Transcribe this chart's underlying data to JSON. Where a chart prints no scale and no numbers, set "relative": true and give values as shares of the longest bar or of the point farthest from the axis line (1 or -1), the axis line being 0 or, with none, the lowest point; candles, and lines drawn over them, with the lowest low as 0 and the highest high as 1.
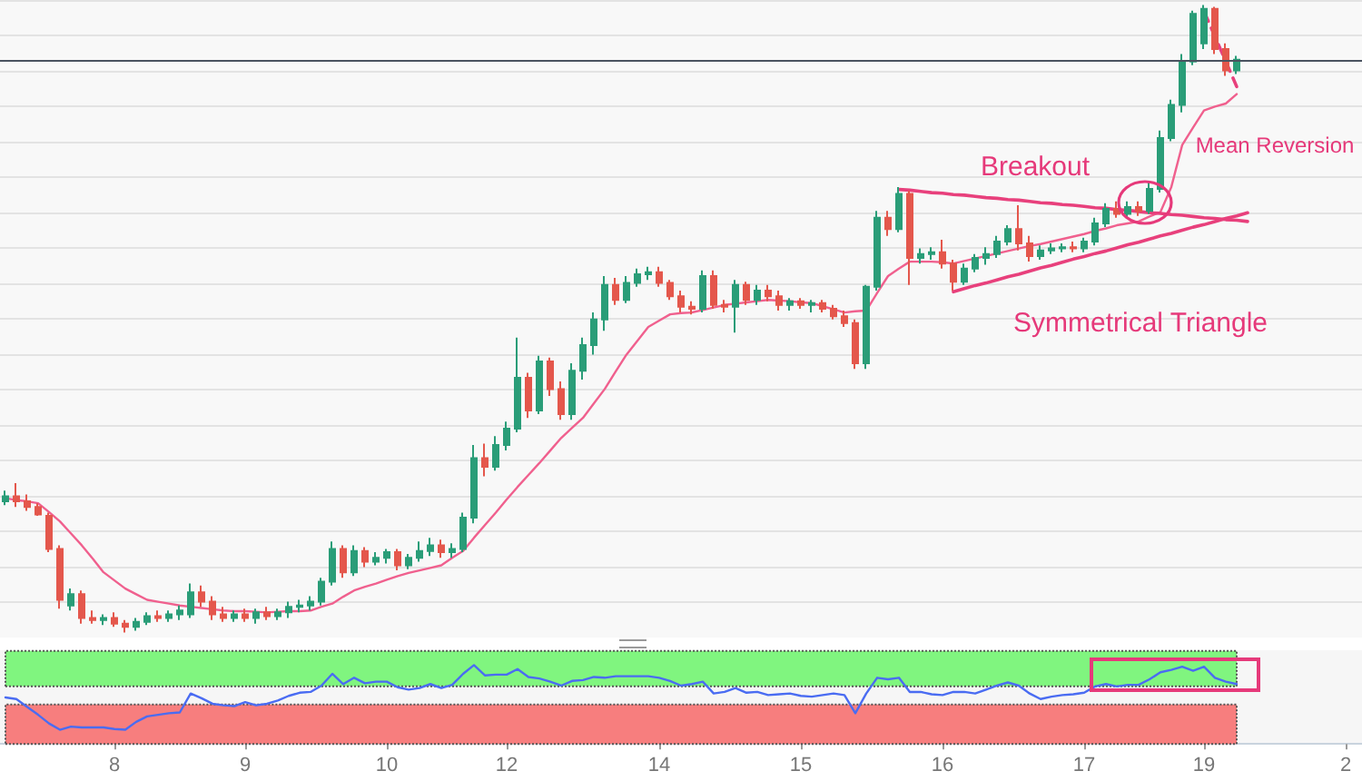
{
  "chart_data": [
    {
      "type": "candlestick",
      "relative": true,
      "tick_labels": false,
      "grid": "y",
      "categories": [
        null,
        null,
        null,
        null,
        null,
        null,
        null,
        null,
        null,
        null,
        "8",
        null,
        null,
        null,
        null,
        null,
        null,
        null,
        null,
        null,
        null,
        null,
        "9",
        null,
        null,
        null,
        null,
        null,
        null,
        null,
        null,
        null,
        null,
        null,
        null,
        "10",
        null,
        null,
        null,
        null,
        null,
        null,
        null,
        null,
        null,
        null,
        "12",
        null,
        null,
        null,
        null,
        null,
        null,
        null,
        null,
        null,
        null,
        null,
        null,
        null,
        "14",
        null,
        null,
        null,
        null,
        null,
        null,
        null,
        null,
        null,
        null,
        null,
        null,
        "15",
        null,
        null,
        null,
        null,
        null,
        null,
        null,
        null,
        null,
        null,
        null,
        null,
        "16",
        null,
        null,
        null,
        null,
        null,
        null,
        null,
        null,
        null,
        null,
        null,
        null,
        "17",
        null,
        null,
        null,
        null,
        null,
        null,
        null,
        null,
        null,
        null,
        "19",
        null,
        null,
        null,
        null,
        null,
        null,
        null,
        null,
        null,
        null,
        null,
        null,
        "2",
        null
      ],
      "ohlc": [
        [
          0.209,
          0.226,
          0.203,
          0.217
        ],
        [
          0.217,
          0.238,
          0.2,
          0.209
        ],
        [
          0.209,
          0.22,
          0.194,
          0.2
        ],
        [
          0.2,
          0.206,
          0.186,
          0.188
        ],
        [
          0.186,
          0.191,
          0.128,
          0.133
        ],
        [
          0.133,
          0.139,
          0.038,
          0.052
        ],
        [
          0.043,
          0.07,
          0.035,
          0.061
        ],
        [
          0.061,
          0.067,
          0.014,
          0.023
        ],
        [
          0.023,
          0.035,
          0.014,
          0.02
        ],
        [
          0.02,
          0.029,
          0.012,
          0.023
        ],
        [
          0.023,
          0.032,
          0.009,
          0.014
        ],
        [
          0.014,
          0.02,
          0,
          0.009
        ],
        [
          0.009,
          0.023,
          0.003,
          0.017
        ],
        [
          0.017,
          0.032,
          0.012,
          0.026
        ],
        [
          0.026,
          0.035,
          0.017,
          0.023
        ],
        [
          0.023,
          0.035,
          0.017,
          0.029
        ],
        [
          0.029,
          0.043,
          0.02,
          0.035
        ],
        [
          0.029,
          0.078,
          0.023,
          0.064
        ],
        [
          0.064,
          0.075,
          0.041,
          0.049
        ],
        [
          0.049,
          0.058,
          0.02,
          0.029
        ],
        [
          0.029,
          0.041,
          0.017,
          0.023
        ],
        [
          0.023,
          0.035,
          0.017,
          0.029
        ],
        [
          0.029,
          0.038,
          0.017,
          0.023
        ],
        [
          0.023,
          0.038,
          0.014,
          0.032
        ],
        [
          0.032,
          0.041,
          0.02,
          0.026
        ],
        [
          0.026,
          0.038,
          0.02,
          0.032
        ],
        [
          0.032,
          0.049,
          0.023,
          0.041
        ],
        [
          0.041,
          0.052,
          0.032,
          0.043
        ],
        [
          0.043,
          0.058,
          0.035,
          0.049
        ],
        [
          0.049,
          0.087,
          0.043,
          0.081
        ],
        [
          0.081,
          0.145,
          0.075,
          0.133
        ],
        [
          0.133,
          0.139,
          0.087,
          0.096
        ],
        [
          0.096,
          0.139,
          0.09,
          0.13
        ],
        [
          0.13,
          0.136,
          0.104,
          0.113
        ],
        [
          0.113,
          0.128,
          0.107,
          0.119
        ],
        [
          0.119,
          0.133,
          0.11,
          0.128
        ],
        [
          0.128,
          0.133,
          0.099,
          0.107
        ],
        [
          0.107,
          0.125,
          0.101,
          0.119
        ],
        [
          0.119,
          0.145,
          0.113,
          0.13
        ],
        [
          0.13,
          0.151,
          0.122,
          0.139
        ],
        [
          0.139,
          0.148,
          0.119,
          0.128
        ],
        [
          0.128,
          0.142,
          0.119,
          0.133
        ],
        [
          0.133,
          0.191,
          0.128,
          0.183
        ],
        [
          0.183,
          0.299,
          0.174,
          0.278
        ],
        [
          0.278,
          0.301,
          0.249,
          0.264
        ],
        [
          0.264,
          0.313,
          0.258,
          0.299
        ],
        [
          0.299,
          0.336,
          0.29,
          0.325
        ],
        [
          0.325,
          0.47,
          0.319,
          0.406
        ],
        [
          0.406,
          0.414,
          0.342,
          0.354
        ],
        [
          0.354,
          0.441,
          0.348,
          0.432
        ],
        [
          0.432,
          0.438,
          0.377,
          0.388
        ],
        [
          0.388,
          0.4,
          0.339,
          0.348
        ],
        [
          0.348,
          0.429,
          0.339,
          0.417
        ],
        [
          0.417,
          0.47,
          0.403,
          0.458
        ],
        [
          0.458,
          0.51,
          0.443,
          0.499
        ],
        [
          0.499,
          0.568,
          0.481,
          0.554
        ],
        [
          0.554,
          0.565,
          0.522,
          0.53
        ],
        [
          0.53,
          0.568,
          0.525,
          0.557
        ],
        [
          0.557,
          0.58,
          0.551,
          0.571
        ],
        [
          0.571,
          0.583,
          0.562,
          0.574
        ],
        [
          0.574,
          0.583,
          0.551,
          0.557
        ],
        [
          0.557,
          0.562,
          0.53,
          0.536
        ],
        [
          0.536,
          0.545,
          0.51,
          0.519
        ],
        [
          0.519,
          0.528,
          0.507,
          0.516
        ],
        [
          0.516,
          0.577,
          0.51,
          0.568
        ],
        [
          0.568,
          0.577,
          0.516,
          0.522
        ],
        [
          0.522,
          0.53,
          0.51,
          0.519
        ],
        [
          0.519,
          0.562,
          0.478,
          0.554
        ],
        [
          0.554,
          0.559,
          0.522,
          0.53
        ],
        [
          0.53,
          0.554,
          0.522,
          0.545
        ],
        [
          0.545,
          0.554,
          0.528,
          0.536
        ],
        [
          0.536,
          0.545,
          0.513,
          0.522
        ],
        [
          0.522,
          0.533,
          0.513,
          0.528
        ],
        [
          0.528,
          0.533,
          0.516,
          0.522
        ],
        [
          0.522,
          0.53,
          0.51,
          0.525
        ],
        [
          0.525,
          0.53,
          0.51,
          0.516
        ],
        [
          0.516,
          0.522,
          0.499,
          0.504
        ],
        [
          0.504,
          0.513,
          0.487,
          0.493
        ],
        [
          0.493,
          0.499,
          0.42,
          0.429
        ],
        [
          0.429,
          0.554,
          0.42,
          0.551
        ],
        [
          0.551,
          0.672,
          0.545,
          0.661
        ],
        [
          0.661,
          0.672,
          0.632,
          0.643
        ],
        [
          0.643,
          0.71,
          0.638,
          0.699
        ],
        [
          0.699,
          0.704,
          0.554,
          0.597
        ],
        [
          0.597,
          0.612,
          0.588,
          0.603
        ],
        [
          0.603,
          0.614,
          0.594,
          0.606
        ],
        [
          0.606,
          0.626,
          0.58,
          0.588
        ],
        [
          0.588,
          0.594,
          0.545,
          0.559
        ],
        [
          0.559,
          0.588,
          0.554,
          0.58
        ],
        [
          0.58,
          0.603,
          0.574,
          0.597
        ],
        [
          0.597,
          0.614,
          0.586,
          0.603
        ],
        [
          0.603,
          0.632,
          0.597,
          0.623
        ],
        [
          0.623,
          0.649,
          0.617,
          0.643
        ],
        [
          0.643,
          0.681,
          0.609,
          0.62
        ],
        [
          0.62,
          0.632,
          0.591,
          0.6
        ],
        [
          0.6,
          0.617,
          0.594,
          0.609
        ],
        [
          0.609,
          0.62,
          0.603,
          0.612
        ],
        [
          0.612,
          0.62,
          0.606,
          0.614
        ],
        [
          0.614,
          0.623,
          0.606,
          0.612
        ],
        [
          0.612,
          0.629,
          0.606,
          0.623
        ],
        [
          0.623,
          0.661,
          0.617,
          0.652
        ],
        [
          0.652,
          0.684,
          0.646,
          0.675
        ],
        [
          0.675,
          0.687,
          0.661,
          0.667
        ],
        [
          0.667,
          0.687,
          0.661,
          0.678
        ],
        [
          0.678,
          0.687,
          0.664,
          0.672
        ],
        [
          0.672,
          0.719,
          0.667,
          0.707
        ],
        [
          0.707,
          0.8,
          0.701,
          0.788
        ],
        [
          0.788,
          0.849,
          0.783,
          0.841
        ],
        [
          0.841,
          0.922,
          0.829,
          0.91
        ],
        [
          0.91,
          0.991,
          0.904,
          0.986
        ],
        [
          0.939,
          1,
          0.93,
          0.994
        ],
        [
          0.994,
          0.997,
          0.922,
          0.93
        ],
        [
          0.93,
          0.939,
          0.887,
          0.896
        ],
        [
          0.896,
          0.919,
          0.89,
          0.913
        ],
        null,
        null,
        null,
        null,
        null,
        null,
        null,
        null,
        null,
        null,
        null
      ],
      "series": [
        {
          "type": "line",
          "color": "#f0608e",
          "values": [
            0.214,
            0.211,
            0.209,
            0.206,
            0.192,
            0.177,
            0.158,
            0.139,
            0.118,
            0.096,
            0.083,
            0.07,
            0.061,
            0.052,
            0.049,
            0.046,
            0.043,
            0.041,
            0.039,
            0.037,
            0.035,
            0.034,
            0.034,
            0.033,
            0.032,
            0.033,
            0.034,
            0.034,
            0.035,
            0.041,
            0.046,
            0.057,
            0.067,
            0.073,
            0.078,
            0.084,
            0.09,
            0.095,
            0.099,
            0.103,
            0.107,
            0.119,
            0.13,
            0.151,
            0.171,
            0.191,
            0.212,
            0.232,
            0.251,
            0.27,
            0.29,
            0.31,
            0.326,
            0.342,
            0.365,
            0.388,
            0.416,
            0.443,
            0.465,
            0.487,
            0.497,
            0.507,
            0.509,
            0.51,
            0.514,
            0.518,
            0.522,
            0.524,
            0.526,
            0.528,
            0.53,
            0.529,
            0.528,
            0.526,
            0.525,
            0.52,
            0.515,
            0.51,
            0.512,
            0.513,
            0.541,
            0.568,
            0.58,
            0.591,
            0.591,
            0.591,
            0.59,
            0.588,
            0.592,
            0.596,
            0.6,
            0.604,
            0.608,
            0.612,
            0.616,
            0.619,
            0.623,
            0.627,
            0.631,
            0.635,
            0.64,
            0.644,
            0.649,
            0.652,
            0.655,
            0.663,
            0.67,
            0.71,
            0.777,
            0.805,
            0.832,
            0.838,
            0.843,
            0.858,
            null,
            null,
            null,
            null,
            null,
            null,
            null,
            null,
            null,
            null,
            null
          ]
        },
        {
          "type": "line",
          "color": "#e8407c",
          "values": [
            null,
            null,
            null,
            null,
            null,
            null,
            null,
            null,
            null,
            null,
            null,
            null,
            null,
            null,
            null,
            null,
            null,
            null,
            null,
            null,
            null,
            null,
            null,
            null,
            null,
            null,
            null,
            null,
            null,
            null,
            null,
            null,
            null,
            null,
            null,
            null,
            null,
            null,
            null,
            null,
            null,
            null,
            null,
            null,
            null,
            null,
            null,
            null,
            null,
            null,
            null,
            null,
            null,
            null,
            null,
            null,
            null,
            null,
            null,
            null,
            null,
            null,
            null,
            null,
            null,
            null,
            null,
            null,
            null,
            null,
            null,
            null,
            null,
            null,
            null,
            null,
            null,
            null,
            null,
            null,
            null,
            null,
            0.706,
            0.705,
            0.703,
            0.701,
            0.7,
            0.698,
            0.697,
            0.695,
            0.693,
            0.692,
            0.69,
            0.689,
            0.687,
            0.685,
            0.684,
            0.682,
            0.681,
            0.679,
            0.677,
            0.676,
            0.674,
            0.673,
            0.671,
            0.669,
            0.668,
            0.666,
            0.665,
            0.663,
            0.661,
            0.66,
            0.658,
            0.657,
            0.655,
            null,
            null,
            null,
            null,
            null,
            null,
            null,
            null,
            null,
            null
          ]
        },
        {
          "type": "line",
          "color": "#e8407c",
          "values": [
            null,
            null,
            null,
            null,
            null,
            null,
            null,
            null,
            null,
            null,
            null,
            null,
            null,
            null,
            null,
            null,
            null,
            null,
            null,
            null,
            null,
            null,
            null,
            null,
            null,
            null,
            null,
            null,
            null,
            null,
            null,
            null,
            null,
            null,
            null,
            null,
            null,
            null,
            null,
            null,
            null,
            null,
            null,
            null,
            null,
            null,
            null,
            null,
            null,
            null,
            null,
            null,
            null,
            null,
            null,
            null,
            null,
            null,
            null,
            null,
            null,
            null,
            null,
            null,
            null,
            null,
            null,
            null,
            null,
            null,
            null,
            null,
            null,
            null,
            null,
            null,
            null,
            null,
            null,
            null,
            null,
            null,
            null,
            null,
            null,
            null,
            null,
            0.543,
            0.548,
            0.553,
            0.557,
            0.562,
            0.567,
            0.571,
            0.576,
            0.581,
            0.585,
            0.59,
            0.595,
            0.599,
            0.604,
            0.608,
            0.613,
            0.618,
            0.622,
            0.627,
            0.632,
            0.636,
            0.641,
            0.646,
            0.65,
            0.655,
            0.66,
            0.664,
            0.669,
            null,
            null,
            null,
            null,
            null,
            null,
            null,
            null,
            null,
            null
          ]
        },
        {
          "type": "line",
          "color": "#e8407c",
          "line_style": "dashed",
          "values": [
            null,
            null,
            null,
            null,
            null,
            null,
            null,
            null,
            null,
            null,
            null,
            null,
            null,
            null,
            null,
            null,
            null,
            null,
            null,
            null,
            null,
            null,
            null,
            null,
            null,
            null,
            null,
            null,
            null,
            null,
            null,
            null,
            null,
            null,
            null,
            null,
            null,
            null,
            null,
            null,
            null,
            null,
            null,
            null,
            null,
            null,
            null,
            null,
            null,
            null,
            null,
            null,
            null,
            null,
            null,
            null,
            null,
            null,
            null,
            null,
            null,
            null,
            null,
            null,
            null,
            null,
            null,
            null,
            null,
            null,
            null,
            null,
            null,
            null,
            null,
            null,
            null,
            null,
            null,
            null,
            null,
            null,
            null,
            null,
            null,
            null,
            null,
            null,
            null,
            null,
            null,
            null,
            null,
            null,
            null,
            null,
            null,
            null,
            null,
            null,
            null,
            null,
            null,
            null,
            null,
            null,
            null,
            null,
            null,
            null,
            0.99,
            0.95,
            0.91,
            0.87,
            null,
            null,
            null,
            null,
            null,
            null,
            null,
            null,
            null,
            null,
            null
          ]
        }
      ],
      "ref_lines": [
        {
          "axis": "y",
          "value": 0.913,
          "color": "#4a5360"
        }
      ],
      "annotations": [
        "Breakout",
        "Symmetrical Triangle",
        "Mean Reversion"
      ]
    },
    {
      "type": "line",
      "relative": true,
      "tick_labels": "x",
      "color": "#4a6cf2",
      "categories": [
        null,
        null,
        null,
        null,
        null,
        null,
        null,
        null,
        null,
        null,
        "8",
        null,
        null,
        null,
        null,
        null,
        null,
        null,
        null,
        null,
        null,
        null,
        "9",
        null,
        null,
        null,
        null,
        null,
        null,
        null,
        null,
        null,
        null,
        null,
        null,
        "10",
        null,
        null,
        null,
        null,
        null,
        null,
        null,
        null,
        null,
        null,
        "12",
        null,
        null,
        null,
        null,
        null,
        null,
        null,
        null,
        null,
        null,
        null,
        null,
        null,
        "14",
        null,
        null,
        null,
        null,
        null,
        null,
        null,
        null,
        null,
        null,
        null,
        null,
        "15",
        null,
        null,
        null,
        null,
        null,
        null,
        null,
        null,
        null,
        null,
        null,
        null,
        "16",
        null,
        null,
        null,
        null,
        null,
        null,
        null,
        null,
        null,
        null,
        null,
        null,
        "17",
        null,
        null,
        null,
        null,
        null,
        null,
        null,
        null,
        null,
        null,
        "19",
        null,
        null,
        null,
        null,
        null,
        null,
        null,
        null,
        null,
        null,
        null,
        null,
        "2",
        null
      ],
      "values": [
        0.59,
        0.57,
        0.47,
        0.37,
        0.26,
        0.18,
        0.22,
        0.21,
        0.21,
        0.21,
        0.19,
        0.18,
        0.28,
        0.35,
        0.37,
        0.39,
        0.4,
        0.64,
        0.58,
        0.51,
        0.49,
        0.48,
        0.53,
        0.49,
        0.51,
        0.55,
        0.61,
        0.65,
        0.66,
        0.74,
        0.89,
        0.76,
        0.84,
        0.77,
        0.79,
        0.79,
        0.72,
        0.69,
        0.71,
        0.76,
        0.71,
        0.75,
        0.89,
        1,
        0.87,
        0.88,
        0.88,
        0.95,
        0.85,
        0.83,
        0.79,
        0.74,
        0.8,
        0.81,
        0.85,
        0.84,
        0.86,
        0.86,
        0.86,
        0.86,
        0.84,
        0.8,
        0.74,
        0.76,
        0.79,
        0.64,
        0.66,
        0.71,
        0.65,
        0.66,
        0.62,
        0.63,
        0.64,
        0.61,
        0.6,
        0.62,
        0.64,
        0.62,
        0.39,
        0.64,
        0.84,
        0.82,
        0.84,
        0.66,
        0.66,
        0.63,
        0.62,
        0.66,
        0.66,
        0.64,
        0.69,
        0.74,
        0.78,
        0.74,
        0.64,
        0.57,
        0.6,
        0.62,
        0.63,
        0.65,
        0.73,
        0.76,
        0.73,
        0.75,
        0.75,
        0.82,
        0.91,
        0.94,
        0.98,
        0.93,
        0.98,
        0.84,
        0.79,
        0.76,
        null,
        null,
        null,
        null,
        null,
        null,
        null,
        null,
        null,
        null,
        null
      ],
      "bands": [
        {
          "axis": "y",
          "from": 0.73,
          "to": 1.18,
          "color": "#80f57f"
        },
        {
          "axis": "y",
          "from": 0,
          "to": 0.5,
          "color": "#f77e7e"
        }
      ]
    }
  ]
}
